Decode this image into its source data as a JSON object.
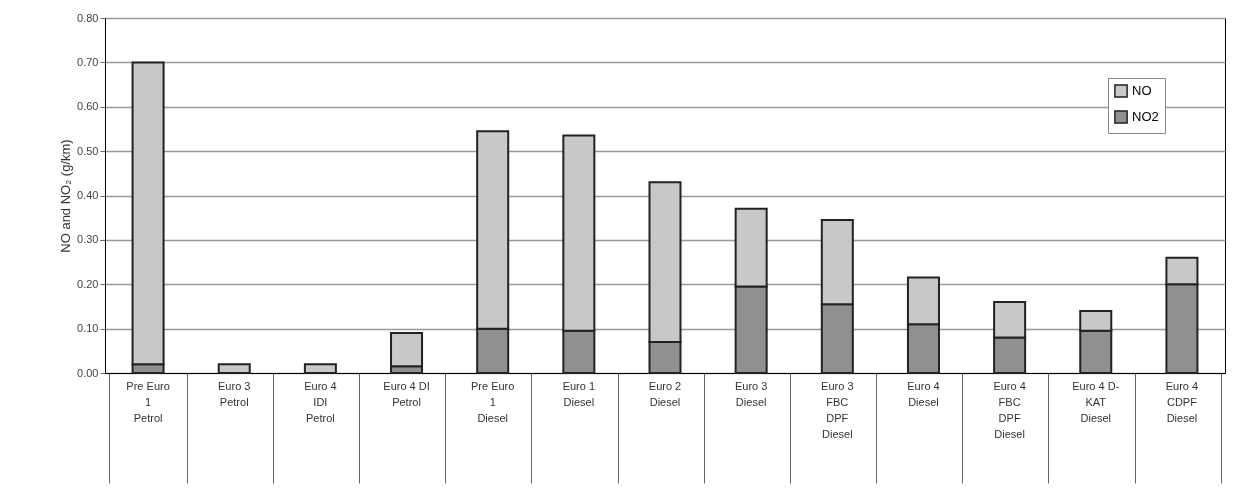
{
  "chart_data": {
    "type": "bar",
    "stacked": true,
    "ylabel": "NO and NO₂ (g/km)",
    "categories": [
      "Pre Euro\n1\n\nPetrol",
      "Euro 3\n\n\nPetrol",
      "Euro 4\nIDI\n\nPetrol",
      "Euro 4 DI\n\n\nPetrol",
      "Pre Euro\n1\n\nDiesel",
      "Euro 1\n\n\nDiesel",
      "Euro 2\n\n\nDiesel",
      "Euro 3\n\n\nDiesel",
      "Euro 3\nFBC\nDPF\nDiesel",
      "Euro 4\n\n\nDiesel",
      "Euro 4\nFBC\nDPF\nDiesel",
      "Euro 4 D-\nKAT\n\nDiesel",
      "Euro 4\nCDPF\n\nDiesel"
    ],
    "series": [
      {
        "name": "NO2",
        "color": "#909090",
        "values": [
          0.02,
          0,
          0,
          0.015,
          0.1,
          0.095,
          0.07,
          0.195,
          0.155,
          0.11,
          0.08,
          0.095,
          0.2
        ]
      },
      {
        "name": "NO",
        "color": "#c8c8c8",
        "values": [
          0.68,
          0.02,
          0.02,
          0.075,
          0.445,
          0.44,
          0.36,
          0.175,
          0.19,
          0.105,
          0.08,
          0.045,
          0.06
        ]
      }
    ],
    "ylim": [
      0,
      0.8
    ],
    "yticks": [
      {
        "value": 0,
        "label": "0.00"
      },
      {
        "value": 0.1,
        "label": "0.10"
      },
      {
        "value": 0.2,
        "label": "0.20"
      },
      {
        "value": 0.3,
        "label": "0.30"
      },
      {
        "value": 0.4,
        "label": "0.40"
      },
      {
        "value": 0.5,
        "label": "0.50"
      },
      {
        "value": 0.6,
        "label": "0.60"
      },
      {
        "value": 0.7,
        "label": "0.70"
      },
      {
        "value": 0.8,
        "label": "0.80"
      }
    ],
    "grid": "y",
    "legend": "top right"
  }
}
